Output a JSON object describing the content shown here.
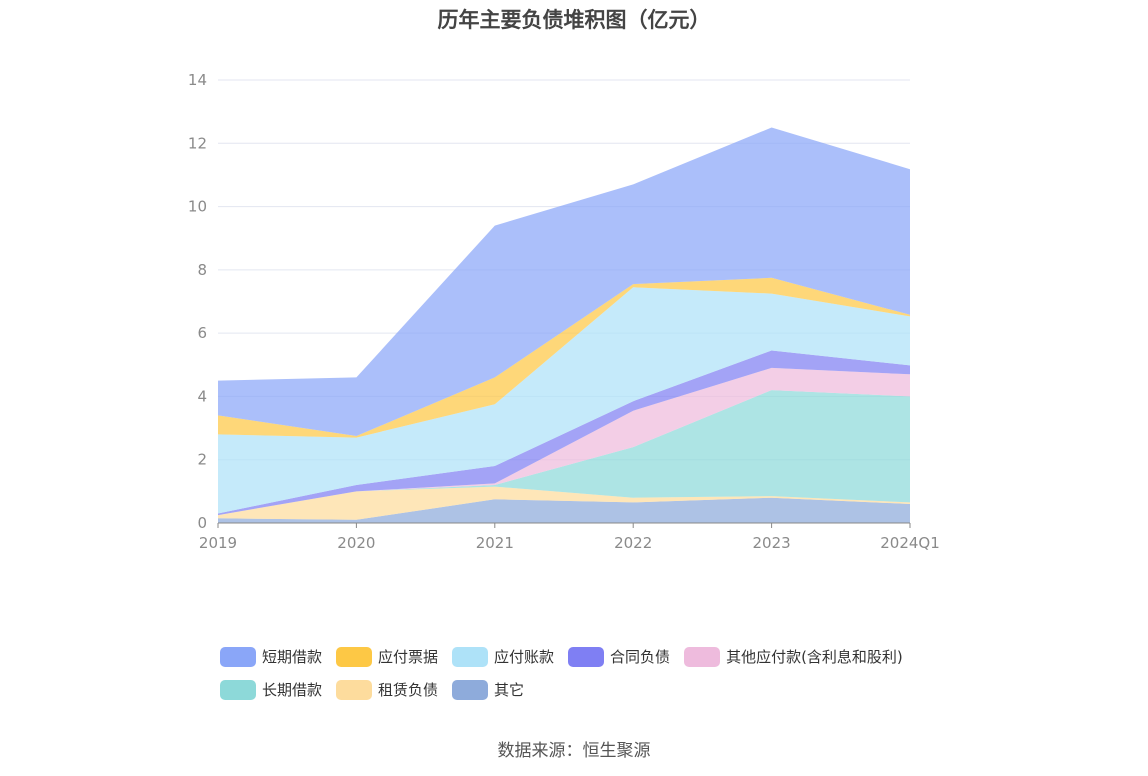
{
  "chart_data": {
    "type": "area",
    "stacked": true,
    "title": "历年主要负债堆积图（亿元）",
    "categories": [
      "2019",
      "2020",
      "2021",
      "2022",
      "2023",
      "2024Q1"
    ],
    "ylim": [
      0,
      14
    ],
    "yticks": [
      0,
      2,
      4,
      6,
      8,
      10,
      12,
      14
    ],
    "grid": true,
    "legend_position": "bottom",
    "series": [
      {
        "name": "其它",
        "color": "#8eabdb",
        "values": [
          0.15,
          0.1,
          0.75,
          0.65,
          0.8,
          0.6
        ]
      },
      {
        "name": "租赁负债",
        "color": "#fddc9d",
        "values": [
          0.1,
          0.9,
          0.4,
          0.15,
          0.05,
          0.05
        ]
      },
      {
        "name": "长期借款",
        "color": "#8dd9d9",
        "values": [
          0.0,
          0.0,
          0.05,
          1.6,
          3.35,
          3.35
        ]
      },
      {
        "name": "其他应付款(含利息和股利)",
        "color": "#eebbdd",
        "values": [
          0.0,
          0.0,
          0.05,
          1.15,
          0.7,
          0.7
        ]
      },
      {
        "name": "合同负债",
        "color": "#7f7ff3",
        "values": [
          0.05,
          0.2,
          0.55,
          0.3,
          0.55,
          0.28
        ]
      },
      {
        "name": "应付账款",
        "color": "#aee2f8",
        "values": [
          2.5,
          1.5,
          1.95,
          3.6,
          1.8,
          1.55
        ]
      },
      {
        "name": "应付票据",
        "color": "#fdc845",
        "values": [
          0.6,
          0.05,
          0.85,
          0.1,
          0.5,
          0.05
        ]
      },
      {
        "name": "短期借款",
        "color": "#8aa6f8",
        "values": [
          1.1,
          1.85,
          4.8,
          3.15,
          4.75,
          4.6
        ]
      }
    ]
  },
  "legend": {
    "row1": [
      "短期借款",
      "应付票据",
      "应付账款",
      "合同负债",
      "其他应付款(含利息和股利)"
    ],
    "row2": [
      "长期借款",
      "租赁负债",
      "其它"
    ]
  },
  "colors": {
    "短期借款": "#8aa6f8",
    "应付票据": "#fdc845",
    "应付账款": "#aee2f8",
    "合同负债": "#7f7ff3",
    "其他应付款(含利息和股利)": "#eebbdd",
    "长期借款": "#8dd9d9",
    "租赁负债": "#fddc9d",
    "其它": "#8eabdb"
  },
  "source": "数据来源：恒生聚源"
}
